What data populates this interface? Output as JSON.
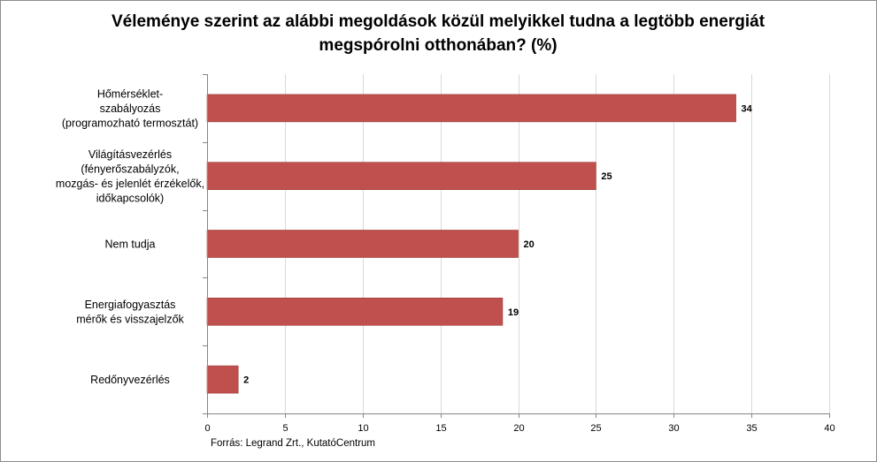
{
  "chart_data": {
    "type": "bar",
    "orientation": "horizontal",
    "title_lines": [
      "Véleménye szerint az alábbi megoldások közül melyikkel tudna a legtöbb energiát",
      "megspórolni otthonában? (%)"
    ],
    "categories": [
      {
        "label_lines": [
          "Hőmérséklet-",
          "szabályozás",
          "(programozható termosztát)"
        ],
        "value": 34
      },
      {
        "label_lines": [
          "Világításvezérlés",
          "(fényerőszabályzók,",
          "mozgás- és jelenlét érzékelők,",
          "időkapcsolók)"
        ],
        "value": 25
      },
      {
        "label_lines": [
          "Nem tudja"
        ],
        "value": 20
      },
      {
        "label_lines": [
          "Energiafogyasztás",
          "mérők és visszajelzők"
        ],
        "value": 19
      },
      {
        "label_lines": [
          "Redőnyvezérlés"
        ],
        "value": 2
      }
    ],
    "xlim": [
      0,
      40
    ],
    "xticks": [
      0,
      5,
      10,
      15,
      20,
      25,
      30,
      35,
      40
    ],
    "grid": "vertical",
    "legend": "none",
    "bar_color": "#c0504d",
    "grid_color": "#d9d9d9",
    "source": "Forrás: Legrand Zrt., KutatóCentrum"
  }
}
